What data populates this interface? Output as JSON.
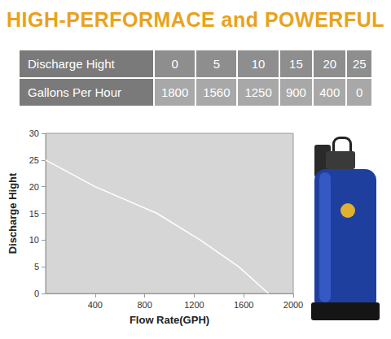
{
  "heading": "HIGH-PERFORMACE and POWERFUL",
  "table": {
    "rows": [
      [
        "Discharge Hight",
        0,
        5,
        10,
        15,
        20,
        25
      ],
      [
        "Gallons Per Hour",
        1800,
        1560,
        1250,
        900,
        400,
        0
      ]
    ]
  },
  "chart_data": {
    "type": "line",
    "x_label": "Flow Rate(GPH)",
    "y_label": "Discharge Hight",
    "x": [
      0,
      400,
      900,
      1250,
      1560,
      1800
    ],
    "values": [
      25,
      20,
      15,
      10,
      5,
      0
    ],
    "color": "#ffffff",
    "xlim": [
      0,
      2000
    ],
    "xticks": [
      400,
      800,
      1200,
      1600,
      2000
    ],
    "ylim": [
      0,
      30
    ],
    "yticks": [
      0,
      5,
      10,
      15,
      20,
      25,
      30
    ],
    "grid": false
  }
}
